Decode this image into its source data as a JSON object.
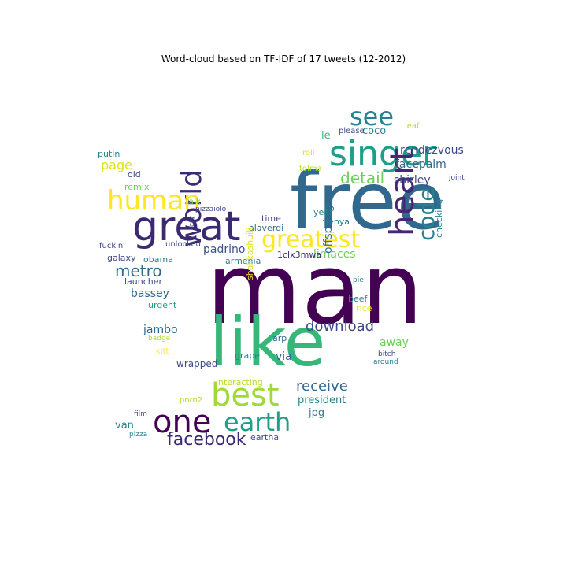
{
  "title": "Word-cloud based on TF-IDF of 17 tweets (12-2012)",
  "words": [
    {
      "text": "man",
      "size": 124,
      "color": "#440154",
      "rot": 0
    },
    {
      "text": "free",
      "size": 100,
      "color": "#31688e",
      "rot": 0
    },
    {
      "text": "like",
      "size": 86,
      "color": "#35b779",
      "rot": 0
    },
    {
      "text": "great",
      "size": 52,
      "color": "#3b2a72",
      "rot": 0
    },
    {
      "text": "singer",
      "size": 44,
      "color": "#1f9e89",
      "rot": 0
    },
    {
      "text": "heart",
      "size": 42,
      "color": "#482677",
      "rot": -90
    },
    {
      "text": "best",
      "size": 40,
      "color": "#a0da39",
      "rot": 0
    },
    {
      "text": "one",
      "size": 40,
      "color": "#440154",
      "rot": 0
    },
    {
      "text": "world",
      "size": 36,
      "color": "#3b2a72",
      "rot": -90
    },
    {
      "text": "human",
      "size": 34,
      "color": "#fde725",
      "rot": 0
    },
    {
      "text": "earth",
      "size": 32,
      "color": "#1f9e89",
      "rot": 0
    },
    {
      "text": "see",
      "size": 32,
      "color": "#26828e",
      "rot": 0
    },
    {
      "text": "greatest",
      "size": 30,
      "color": "#fde725",
      "rot": 0
    },
    {
      "text": "code",
      "size": 28,
      "color": "#26828e",
      "rot": -90
    },
    {
      "text": "facebook",
      "size": 22,
      "color": "#3b2a72",
      "rot": 0
    },
    {
      "text": "metro",
      "size": 20,
      "color": "#31688e",
      "rot": 0
    },
    {
      "text": "detail",
      "size": 20,
      "color": "#6ece58",
      "rot": 0
    },
    {
      "text": "download",
      "size": 18,
      "color": "#3e4989",
      "rot": 0
    },
    {
      "text": "receive",
      "size": 18,
      "color": "#31688e",
      "rot": 0
    },
    {
      "text": "page",
      "size": 16,
      "color": "#dfe318",
      "rot": 0
    },
    {
      "text": "shirley",
      "size": 14,
      "color": "#3e4989",
      "rot": 0
    },
    {
      "text": "rendezvous",
      "size": 14,
      "color": "#3e4989",
      "rot": 0
    },
    {
      "text": "facepalm",
      "size": 14,
      "color": "#31688e",
      "rot": 0
    },
    {
      "text": "le",
      "size": 13,
      "color": "#35b779",
      "rot": 0
    },
    {
      "text": "coco",
      "size": 13,
      "color": "#26828e",
      "rot": 0
    },
    {
      "text": "padrino",
      "size": 14,
      "color": "#3b528b",
      "rot": 0
    },
    {
      "text": "limaces",
      "size": 14,
      "color": "#6ece58",
      "rot": 0
    },
    {
      "text": "bassey",
      "size": 14,
      "color": "#31688e",
      "rot": 0
    },
    {
      "text": "jambo",
      "size": 14,
      "color": "#31688e",
      "rot": 0
    },
    {
      "text": "offspring",
      "size": 14,
      "color": "#2c728e",
      "rot": -90
    },
    {
      "text": "away",
      "size": 14,
      "color": "#6ece58",
      "rot": 0
    },
    {
      "text": "via",
      "size": 14,
      "color": "#31688e",
      "rot": 0
    },
    {
      "text": "president",
      "size": 13,
      "color": "#26828e",
      "rot": 0
    },
    {
      "text": "jpg",
      "size": 13,
      "color": "#26828e",
      "rot": 0
    },
    {
      "text": "van",
      "size": 13,
      "color": "#26828e",
      "rot": 0
    },
    {
      "text": "wrapped",
      "size": 12,
      "color": "#3e4989",
      "rot": 0
    },
    {
      "text": "launcher",
      "size": 11,
      "color": "#3e4989",
      "rot": 0
    },
    {
      "text": "galaxy",
      "size": 11,
      "color": "#3e4989",
      "rot": 0
    },
    {
      "text": "obama",
      "size": 11,
      "color": "#26828e",
      "rot": 0
    },
    {
      "text": "urgent",
      "size": 11,
      "color": "#1f9e89",
      "rot": 0
    },
    {
      "text": "armenia",
      "size": 11,
      "color": "#26828e",
      "rot": 0
    },
    {
      "text": "alaverdi",
      "size": 11,
      "color": "#31688e",
      "rot": 0
    },
    {
      "text": "1clx3mwa",
      "size": 11,
      "color": "#3b2a72",
      "rot": 0
    },
    {
      "text": "checking",
      "size": 11,
      "color": "#26828e",
      "rot": -90
    },
    {
      "text": "time",
      "size": 11,
      "color": "#3e4989",
      "rot": 0
    },
    {
      "text": "jenya",
      "size": 11,
      "color": "#26828e",
      "rot": 0
    },
    {
      "text": "year",
      "size": 11,
      "color": "#26828e",
      "rot": 0
    },
    {
      "text": "beef",
      "size": 11,
      "color": "#26828e",
      "rot": 0
    },
    {
      "text": "rice",
      "size": 11,
      "color": "#fde725",
      "rot": 0
    },
    {
      "text": "grape",
      "size": 11,
      "color": "#26828e",
      "rot": 0
    },
    {
      "text": "arp",
      "size": 11,
      "color": "#31688e",
      "rot": 0
    },
    {
      "text": "please",
      "size": 10,
      "color": "#3e4989",
      "rot": 0
    },
    {
      "text": "roll",
      "size": 10,
      "color": "#dfe318",
      "rot": 0
    },
    {
      "text": "leaf",
      "size": 10,
      "color": "#b5de2b",
      "rot": 0
    },
    {
      "text": "tolma",
      "size": 10,
      "color": "#b5de2b",
      "rot": 0
    },
    {
      "text": "joint",
      "size": 9,
      "color": "#3e4989",
      "rot": 0
    },
    {
      "text": "putin",
      "size": 11,
      "color": "#26828e",
      "rot": 0
    },
    {
      "text": "old",
      "size": 11,
      "color": "#3e4989",
      "rot": 0
    },
    {
      "text": "remix",
      "size": 11,
      "color": "#6ece58",
      "rot": 0
    },
    {
      "text": "talk",
      "size": 10,
      "color": "#6ece58",
      "rot": 0
    },
    {
      "text": "pizzaiolo",
      "size": 9,
      "color": "#3e4989",
      "rot": 0
    },
    {
      "text": "cry",
      "size": 9,
      "color": "#3e4989",
      "rot": -90
    },
    {
      "text": "fuckin",
      "size": 10,
      "color": "#3e4989",
      "rot": 0
    },
    {
      "text": "unlocked",
      "size": 10,
      "color": "#3e4989",
      "rot": 0
    },
    {
      "text": "shalikashuili",
      "size": 11,
      "color": "#dfe318",
      "rot": -90
    },
    {
      "text": "badge",
      "size": 9,
      "color": "#b5de2b",
      "rot": 0
    },
    {
      "text": "kitt",
      "size": 10,
      "color": "#fde725",
      "rot": 0
    },
    {
      "text": "pie",
      "size": 9,
      "color": "#26828e",
      "rot": 0
    },
    {
      "text": "bitch",
      "size": 9,
      "color": "#3e4989",
      "rot": 0
    },
    {
      "text": "around",
      "size": 9,
      "color": "#26828e",
      "rot": 0
    },
    {
      "text": "interacting",
      "size": 11,
      "color": "#b5de2b",
      "rot": 0
    },
    {
      "text": "porn2",
      "size": 10,
      "color": "#b5de2b",
      "rot": 0
    },
    {
      "text": "film",
      "size": 9,
      "color": "#3e4989",
      "rot": 0
    },
    {
      "text": "eartha",
      "size": 11,
      "color": "#3e4989",
      "rot": 0
    },
    {
      "text": "pizza",
      "size": 9,
      "color": "#26828e",
      "rot": 0
    }
  ]
}
